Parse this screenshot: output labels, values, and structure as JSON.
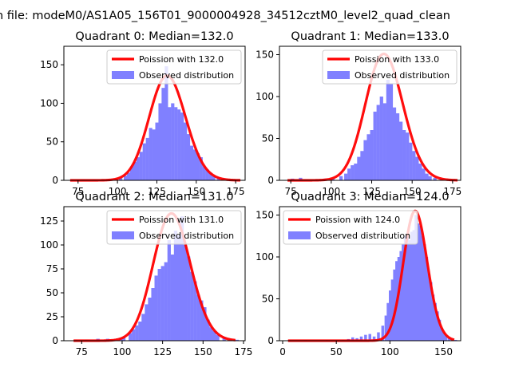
{
  "suptitle": "n file: modeM0/AS1A05_156T01_9000004928_34512cztM0_level2_quad_clean",
  "colors": {
    "hist": "#8080ff",
    "curve": "#ff0000",
    "axis": "#000000"
  },
  "chart_data": [
    {
      "type": "bar",
      "title": "Quadrant 0: Median=132.0",
      "median": 132.0,
      "xlim": [
        66,
        181
      ],
      "ylim": [
        0,
        174
      ],
      "xticks": [
        75,
        100,
        125,
        150,
        175
      ],
      "yticks": [
        0,
        50,
        100,
        150
      ],
      "legend": {
        "position": "top-right",
        "curve": "Poission with 132.0",
        "hist": "Observed distribution"
      },
      "curve_scale": 136,
      "curve_range": [
        70,
        178
      ],
      "bins": [
        [
          70,
          1
        ],
        [
          77,
          1
        ],
        [
          84,
          1
        ],
        [
          90,
          1
        ],
        [
          95,
          1
        ],
        [
          98,
          2
        ],
        [
          101,
          3
        ],
        [
          104,
          6
        ],
        [
          106,
          10
        ],
        [
          108,
          18
        ],
        [
          110,
          24
        ],
        [
          112,
          30
        ],
        [
          114,
          37
        ],
        [
          116,
          48
        ],
        [
          118,
          55
        ],
        [
          120,
          68
        ],
        [
          122,
          66
        ],
        [
          124,
          75
        ],
        [
          126,
          100
        ],
        [
          128,
          120
        ],
        [
          130,
          148
        ],
        [
          132,
          95
        ],
        [
          134,
          100
        ],
        [
          136,
          95
        ],
        [
          138,
          92
        ],
        [
          140,
          88
        ],
        [
          142,
          75
        ],
        [
          144,
          60
        ],
        [
          146,
          45
        ],
        [
          148,
          40
        ],
        [
          150,
          35
        ],
        [
          152,
          30
        ],
        [
          154,
          18
        ],
        [
          156,
          14
        ],
        [
          158,
          10
        ],
        [
          160,
          6
        ],
        [
          163,
          4
        ],
        [
          166,
          3
        ],
        [
          170,
          1
        ]
      ],
      "bin_width": 2.1
    },
    {
      "type": "bar",
      "title": "Quadrant 1: Median=133.0",
      "median": 133.0,
      "xlim": [
        68,
        180
      ],
      "ylim": [
        0,
        160
      ],
      "xticks": [
        75,
        100,
        125,
        150,
        175
      ],
      "yticks": [
        0,
        50,
        100,
        150
      ],
      "legend": {
        "position": "top-right",
        "curve": "Poission with 133.0",
        "hist": "Observed distribution"
      },
      "curve_scale": 151,
      "curve_range": [
        73,
        178
      ],
      "bins": [
        [
          75,
          2
        ],
        [
          80,
          3
        ],
        [
          95,
          2
        ],
        [
          100,
          2
        ],
        [
          105,
          5
        ],
        [
          108,
          8
        ],
        [
          110,
          14
        ],
        [
          112,
          18
        ],
        [
          114,
          20
        ],
        [
          116,
          28
        ],
        [
          118,
          35
        ],
        [
          120,
          48
        ],
        [
          122,
          55
        ],
        [
          124,
          60
        ],
        [
          126,
          82
        ],
        [
          128,
          90
        ],
        [
          130,
          100
        ],
        [
          132,
          92
        ],
        [
          134,
          120
        ],
        [
          136,
          115
        ],
        [
          138,
          87
        ],
        [
          140,
          80
        ],
        [
          142,
          70
        ],
        [
          144,
          60
        ],
        [
          146,
          57
        ],
        [
          148,
          45
        ],
        [
          150,
          35
        ],
        [
          152,
          28
        ],
        [
          154,
          20
        ],
        [
          156,
          14
        ],
        [
          158,
          8
        ],
        [
          160,
          5
        ],
        [
          163,
          3
        ],
        [
          167,
          2
        ]
      ],
      "bin_width": 2.1
    },
    {
      "type": "bar",
      "title": "Quadrant 2: Median=131.0",
      "median": 131.0,
      "xlim": [
        64,
        176
      ],
      "ylim": [
        0,
        140
      ],
      "xticks": [
        75,
        100,
        125,
        150,
        175
      ],
      "yticks": [
        0,
        25,
        50,
        75,
        100,
        125
      ],
      "legend": {
        "position": "top-right",
        "curve": "Poission with 131.0",
        "hist": "Observed distribution"
      },
      "curve_scale": 133,
      "curve_range": [
        70,
        170
      ],
      "bins": [
        [
          70,
          1
        ],
        [
          77,
          1
        ],
        [
          84,
          2
        ],
        [
          90,
          2
        ],
        [
          95,
          2
        ],
        [
          98,
          3
        ],
        [
          100,
          4
        ],
        [
          104,
          8
        ],
        [
          106,
          12
        ],
        [
          108,
          16
        ],
        [
          110,
          20
        ],
        [
          112,
          28
        ],
        [
          114,
          38
        ],
        [
          116,
          45
        ],
        [
          118,
          55
        ],
        [
          120,
          68
        ],
        [
          122,
          75
        ],
        [
          124,
          78
        ],
        [
          126,
          82
        ],
        [
          128,
          105
        ],
        [
          130,
          90
        ],
        [
          132,
          115
        ],
        [
          134,
          110
        ],
        [
          136,
          130
        ],
        [
          138,
          100
        ],
        [
          140,
          88
        ],
        [
          142,
          72
        ],
        [
          144,
          62
        ],
        [
          146,
          48
        ],
        [
          148,
          42
        ],
        [
          150,
          35
        ],
        [
          152,
          22
        ],
        [
          154,
          14
        ],
        [
          156,
          10
        ],
        [
          158,
          6
        ],
        [
          162,
          4
        ],
        [
          166,
          2
        ],
        [
          170,
          1
        ]
      ],
      "bin_width": 2.1
    },
    {
      "type": "bar",
      "title": "Quadrant 3: Median=124.0",
      "median": 124.0,
      "xlim": [
        -3,
        166
      ],
      "ylim": [
        0,
        160
      ],
      "xticks": [
        0,
        50,
        100,
        150
      ],
      "yticks": [
        0,
        50,
        100,
        150
      ],
      "legend": {
        "position": "top-left",
        "curve": "Poission with 124.0",
        "hist": "Observed distribution"
      },
      "curve_scale": 155,
      "curve_range": [
        5,
        160
      ],
      "bins": [
        [
          5,
          1
        ],
        [
          20,
          1
        ],
        [
          40,
          1
        ],
        [
          50,
          1
        ],
        [
          55,
          1
        ],
        [
          60,
          2
        ],
        [
          64,
          4
        ],
        [
          68,
          3
        ],
        [
          72,
          5
        ],
        [
          76,
          7
        ],
        [
          80,
          8
        ],
        [
          84,
          5
        ],
        [
          88,
          10
        ],
        [
          92,
          18
        ],
        [
          95,
          30
        ],
        [
          97,
          45
        ],
        [
          99,
          60
        ],
        [
          101,
          73
        ],
        [
          103,
          85
        ],
        [
          105,
          95
        ],
        [
          107,
          100
        ],
        [
          109,
          107
        ],
        [
          111,
          115
        ],
        [
          113,
          125
        ],
        [
          115,
          128
        ],
        [
          117,
          120
        ],
        [
          119,
          130
        ],
        [
          121,
          132
        ],
        [
          123,
          150
        ],
        [
          125,
          140
        ],
        [
          127,
          137
        ],
        [
          129,
          125
        ],
        [
          131,
          115
        ],
        [
          133,
          100
        ],
        [
          135,
          80
        ],
        [
          137,
          70
        ],
        [
          139,
          55
        ],
        [
          141,
          45
        ],
        [
          143,
          35
        ],
        [
          145,
          25
        ],
        [
          147,
          15
        ],
        [
          149,
          10
        ],
        [
          151,
          6
        ],
        [
          154,
          4
        ],
        [
          157,
          2
        ],
        [
          160,
          1
        ]
      ],
      "bin_width": 2.6
    }
  ]
}
